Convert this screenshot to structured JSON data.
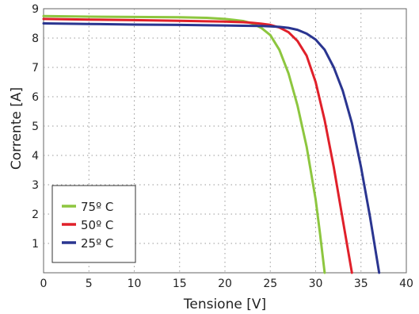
{
  "chart_data": {
    "type": "line",
    "xlabel": "Tensione [V]",
    "ylabel": "Corrente [A]",
    "xlim": [
      0,
      40
    ],
    "ylim": [
      0,
      9
    ],
    "xticks": [
      0,
      5,
      10,
      15,
      20,
      25,
      30,
      35,
      40
    ],
    "yticks": [
      1,
      2,
      3,
      4,
      5,
      6,
      7,
      8,
      9
    ],
    "grid": true,
    "legend_position": "bottom-left",
    "series": [
      {
        "name": "75º C",
        "color": "#8dc63f",
        "x": [
          0,
          5,
          10,
          15,
          18,
          20,
          21,
          22,
          23,
          24,
          25,
          26,
          27,
          28,
          29,
          30,
          30.5,
          31
        ],
        "y": [
          8.75,
          8.73,
          8.72,
          8.71,
          8.69,
          8.65,
          8.62,
          8.58,
          8.5,
          8.35,
          8.1,
          7.6,
          6.8,
          5.7,
          4.3,
          2.5,
          1.3,
          0
        ]
      },
      {
        "name": "50º C",
        "color": "#e0202a",
        "x": [
          0,
          5,
          10,
          15,
          20,
          22,
          23,
          24,
          25,
          26,
          27,
          28,
          29,
          30,
          31,
          32,
          33,
          34
        ],
        "y": [
          8.65,
          8.63,
          8.61,
          8.59,
          8.56,
          8.54,
          8.52,
          8.49,
          8.45,
          8.36,
          8.2,
          7.9,
          7.4,
          6.5,
          5.2,
          3.6,
          1.8,
          0
        ]
      },
      {
        "name": "25º C",
        "color": "#2a3590",
        "x": [
          0,
          5,
          10,
          15,
          20,
          22,
          24,
          25,
          26,
          27,
          28,
          29,
          30,
          31,
          32,
          33,
          34,
          35,
          36,
          37
        ],
        "y": [
          8.5,
          8.48,
          8.46,
          8.45,
          8.43,
          8.42,
          8.41,
          8.4,
          8.38,
          8.35,
          8.28,
          8.15,
          7.95,
          7.6,
          7.0,
          6.2,
          5.1,
          3.6,
          1.9,
          0
        ]
      }
    ]
  }
}
